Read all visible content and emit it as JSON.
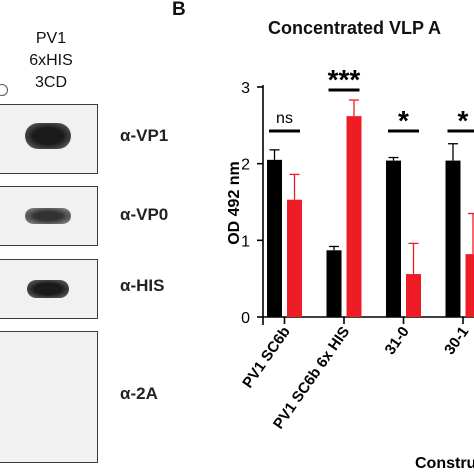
{
  "blot": {
    "header_lines": [
      "PV1",
      "6xHIS",
      "3CD"
    ],
    "rows": [
      {
        "label": "α-VP1"
      },
      {
        "label": "α-VP0"
      },
      {
        "label": "α-HIS"
      },
      {
        "label": "α-2A"
      }
    ]
  },
  "panel_letter": "B",
  "colors": {
    "series_black": "#000000",
    "series_red": "#ee1c24"
  },
  "chart_data": {
    "type": "bar",
    "title": "Concentrated VLP A",
    "xlabel": "Construct",
    "ylabel": "OD 492 nm",
    "ylim": [
      0,
      3
    ],
    "yticks": [
      "0",
      "1",
      "2",
      "3"
    ],
    "categories": [
      "PV1 SC6b",
      "PV1 SC6b 6x HIS",
      "31-0",
      "30-1"
    ],
    "series": [
      {
        "color": "#000000",
        "values": [
          2.05,
          0.87,
          2.04,
          2.04
        ],
        "errors": [
          0.13,
          0.05,
          0.04,
          0.22
        ]
      },
      {
        "color": "#ee1c24",
        "values": [
          1.53,
          2.62,
          0.56,
          0.82
        ],
        "errors": [
          0.33,
          0.21,
          0.4,
          0.53
        ]
      }
    ],
    "significance": [
      "ns",
      "***",
      "*",
      "*"
    ]
  }
}
